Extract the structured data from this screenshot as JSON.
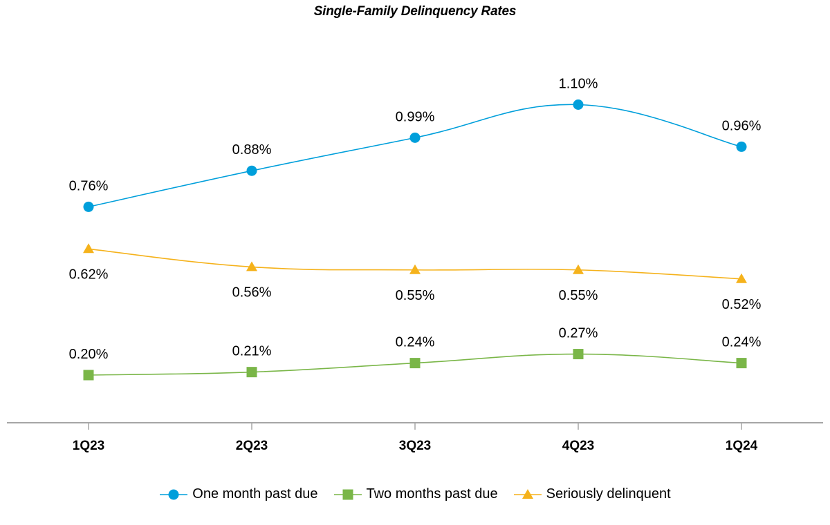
{
  "chart_data": {
    "type": "line",
    "title": "Single-Family Delinquency Rates",
    "xlabel": "",
    "ylabel": "",
    "categories": [
      "1Q23",
      "2Q23",
      "3Q23",
      "4Q23",
      "1Q24"
    ],
    "ylim": [
      0,
      1.2
    ],
    "grid": false,
    "legend_position": "bottom",
    "series": [
      {
        "name": "One month past due",
        "values": [
          0.76,
          0.88,
          0.99,
          1.1,
          0.96
        ],
        "labels": [
          "0.76%",
          "0.88%",
          "0.99%",
          "1.10%",
          "0.96%"
        ],
        "color": "#009fdb",
        "marker": "circle",
        "label_position": "above"
      },
      {
        "name": "Two months past due",
        "values": [
          0.2,
          0.21,
          0.24,
          0.27,
          0.24
        ],
        "labels": [
          "0.20%",
          "0.21%",
          "0.24%",
          "0.27%",
          "0.24%"
        ],
        "color": "#7ab648",
        "marker": "square",
        "label_position": "above"
      },
      {
        "name": "Seriously delinquent",
        "values": [
          0.62,
          0.56,
          0.55,
          0.55,
          0.52
        ],
        "labels": [
          "0.62%",
          "0.56%",
          "0.55%",
          "0.55%",
          "0.52%"
        ],
        "color": "#f5b21b",
        "marker": "triangle",
        "label_position": "below"
      }
    ]
  }
}
